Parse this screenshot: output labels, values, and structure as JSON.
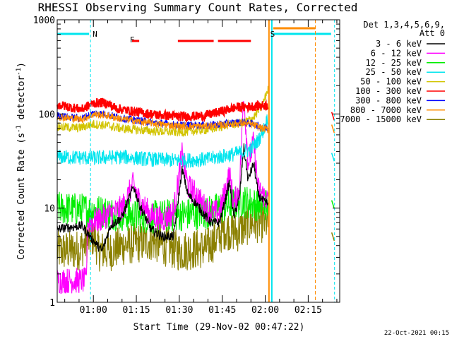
{
  "chart_data": {
    "type": "line",
    "title": "RHESSI Observing Summary Count Rates, Corrected",
    "xlabel": "Start Time (29-Nov-02 00:47:22)",
    "ylabel": "Corrected Count Rate (s",
    "ylabel_sup1": "-1",
    "ylabel_mid": " detector",
    "ylabel_sup2": "-1",
    "ylabel_end": ")",
    "yscale": "log",
    "ylim": [
      1,
      1000
    ],
    "xlim_minutes": [
      47.37,
      146.0
    ],
    "y_ticks": [
      {
        "value": 1,
        "label": "1"
      },
      {
        "value": 10,
        "label": "10"
      },
      {
        "value": 100,
        "label": "100"
      },
      {
        "value": 1000,
        "label": "1000"
      }
    ],
    "x_ticks": [
      {
        "minute": 60,
        "label": "01:00"
      },
      {
        "minute": 75,
        "label": "01:15"
      },
      {
        "minute": 90,
        "label": "01:30"
      },
      {
        "minute": 105,
        "label": "01:45"
      },
      {
        "minute": 120,
        "label": "02:00"
      },
      {
        "minute": 135,
        "label": "02:15"
      }
    ],
    "legend_header": [
      "Det 1,3,4,5,6,9,",
      "Att 0"
    ],
    "series": [
      {
        "name": "3 - 6 keV",
        "color": "#000000",
        "points": [
          [
            47.4,
            6
          ],
          [
            56,
            6.5
          ],
          [
            60,
            4.5
          ],
          [
            63,
            3.5
          ],
          [
            66,
            6.5
          ],
          [
            70,
            8
          ],
          [
            74,
            17
          ],
          [
            76,
            11
          ],
          [
            80,
            6
          ],
          [
            84,
            5
          ],
          [
            88,
            5
          ],
          [
            91,
            26
          ],
          [
            93,
            14
          ],
          [
            96,
            11
          ],
          [
            98,
            9
          ],
          [
            101,
            7
          ],
          [
            104,
            7
          ],
          [
            106,
            12
          ],
          [
            107.5,
            19
          ],
          [
            109,
            8
          ],
          [
            111,
            13
          ],
          [
            112.5,
            45
          ],
          [
            114,
            20
          ],
          [
            116,
            30
          ],
          [
            117.5,
            14
          ],
          [
            119,
            12
          ],
          [
            121,
            11
          ]
        ]
      },
      {
        "name": "6 - 12 keV",
        "color": "#ff00ff",
        "points": [
          [
            47.4,
            1.7
          ],
          [
            57.5,
            1.7
          ],
          [
            58,
            7
          ],
          [
            62,
            7.5
          ],
          [
            65,
            8.5
          ],
          [
            70,
            10
          ],
          [
            74,
            18
          ],
          [
            76,
            12
          ],
          [
            80,
            8.5
          ],
          [
            84,
            7.5
          ],
          [
            88,
            9
          ],
          [
            91,
            38
          ],
          [
            93,
            17
          ],
          [
            96,
            14
          ],
          [
            98,
            11
          ],
          [
            101,
            9
          ],
          [
            104,
            9
          ],
          [
            106,
            15
          ],
          [
            107.5,
            23
          ],
          [
            109,
            11
          ],
          [
            111,
            16
          ],
          [
            112.5,
            170
          ],
          [
            114,
            30
          ],
          [
            116,
            50
          ],
          [
            117.5,
            16
          ],
          [
            119,
            14
          ],
          [
            121,
            12
          ]
        ]
      },
      {
        "name": "12 - 25 keV",
        "color": "#00ee00",
        "points": [
          [
            47.4,
            10
          ],
          [
            60,
            9.5
          ],
          [
            70,
            8.5
          ],
          [
            80,
            8
          ],
          [
            90,
            8.5
          ],
          [
            100,
            9
          ],
          [
            108,
            11
          ],
          [
            112,
            12
          ],
          [
            116,
            11
          ],
          [
            121,
            11
          ]
        ]
      },
      {
        "name": "25 - 50 keV",
        "color": "#00e5ee",
        "points": [
          [
            47.4,
            35
          ],
          [
            60,
            34
          ],
          [
            70,
            35
          ],
          [
            80,
            33
          ],
          [
            90,
            32
          ],
          [
            100,
            33
          ],
          [
            110,
            38
          ],
          [
            115,
            42
          ],
          [
            118,
            55
          ],
          [
            120,
            75
          ],
          [
            121,
            95
          ]
        ]
      },
      {
        "name": "50 - 100 keV",
        "color": "#d2c400",
        "points": [
          [
            47.4,
            73
          ],
          [
            55,
            71
          ],
          [
            60,
            78
          ],
          [
            65,
            75
          ],
          [
            70,
            70
          ],
          [
            80,
            66
          ],
          [
            90,
            64
          ],
          [
            100,
            68
          ],
          [
            108,
            78
          ],
          [
            112,
            80
          ],
          [
            116,
            92
          ],
          [
            119,
            125
          ],
          [
            121,
            185
          ]
        ]
      },
      {
        "name": "100 - 300 keV",
        "color": "#ff0000",
        "points": [
          [
            47.4,
            125
          ],
          [
            52,
            118
          ],
          [
            56,
            112
          ],
          [
            60,
            130
          ],
          [
            64,
            132
          ],
          [
            68,
            115
          ],
          [
            75,
            105
          ],
          [
            82,
            98
          ],
          [
            90,
            94
          ],
          [
            98,
            95
          ],
          [
            104,
            105
          ],
          [
            110,
            118
          ],
          [
            115,
            120
          ],
          [
            121,
            124
          ]
        ]
      },
      {
        "name": "300 - 800 keV",
        "color": "#0000ff",
        "points": [
          [
            47.4,
            96
          ],
          [
            52,
            92
          ],
          [
            56,
            90
          ],
          [
            60,
            102
          ],
          [
            64,
            100
          ],
          [
            70,
            90
          ],
          [
            80,
            82
          ],
          [
            90,
            76
          ],
          [
            100,
            76
          ],
          [
            108,
            80
          ],
          [
            112,
            82
          ],
          [
            116,
            78
          ],
          [
            119,
            72
          ],
          [
            121,
            70
          ]
        ]
      },
      {
        "name": "800 - 7000 keV",
        "color": "#ff8c00",
        "points": [
          [
            47.4,
            94
          ],
          [
            52,
            90
          ],
          [
            56,
            88
          ],
          [
            60,
            99
          ],
          [
            64,
            97
          ],
          [
            70,
            88
          ],
          [
            80,
            80
          ],
          [
            90,
            74
          ],
          [
            100,
            74
          ],
          [
            108,
            78
          ],
          [
            112,
            80
          ],
          [
            116,
            76
          ],
          [
            119,
            70
          ],
          [
            121,
            68
          ]
        ]
      },
      {
        "name": "7000 - 15000 keV",
        "color": "#8b8000",
        "points": [
          [
            47.4,
            3.5
          ],
          [
            55,
            3.6
          ],
          [
            60,
            5
          ],
          [
            62,
            3.5
          ],
          [
            66,
            3.5
          ],
          [
            70,
            4
          ],
          [
            80,
            4.5
          ],
          [
            90,
            3.5
          ],
          [
            100,
            3.8
          ],
          [
            106,
            6
          ],
          [
            110,
            5.5
          ],
          [
            115,
            7
          ],
          [
            121,
            7
          ]
        ]
      }
    ],
    "attenuator_flags": [
      {
        "label": "N",
        "color": "#00e5ee",
        "x_minute": 59
      },
      {
        "label": "F",
        "color": "#ff0000",
        "x_minute": 72
      },
      {
        "label": "S",
        "color": "#ff8c00",
        "x_minute": 121
      }
    ],
    "date_stamp": "22-Oct-2021 00:15"
  }
}
